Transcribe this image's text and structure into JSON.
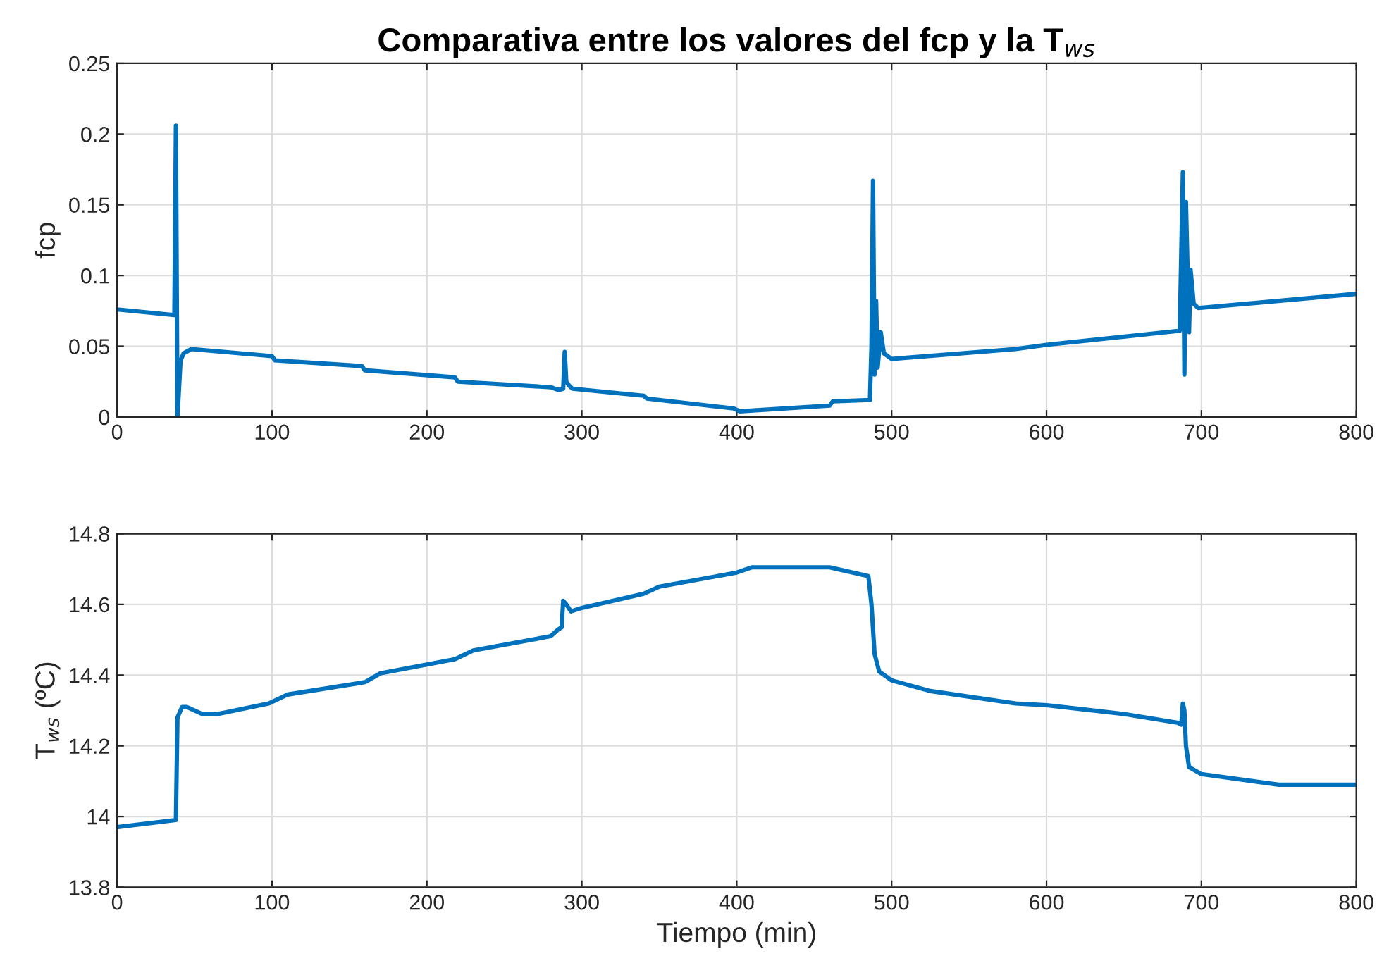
{
  "chart_data": [
    {
      "type": "line",
      "title": "Comparativa entre los valores del fcp y la T$_{ws}$",
      "ylabel": "fcp",
      "xlim": [
        0,
        800
      ],
      "xticks": [
        0,
        100,
        200,
        300,
        400,
        500,
        600,
        700,
        800
      ],
      "ylim": [
        0,
        0.25
      ],
      "yticks": [
        0,
        0.05,
        0.1,
        0.15,
        0.2,
        0.25
      ],
      "grid": true,
      "series": [
        {
          "color": "#0072bd",
          "x": [
            0,
            37,
            38,
            39,
            40,
            41,
            43,
            48,
            100,
            102,
            158,
            160,
            218,
            220,
            280,
            285,
            288,
            289,
            290,
            292,
            294,
            340,
            342,
            398,
            402,
            460,
            462,
            486,
            487,
            488,
            489,
            490,
            491,
            493,
            495,
            500,
            580,
            600,
            686,
            688,
            689,
            690,
            692,
            693,
            695,
            698,
            800
          ],
          "values": [
            0.076,
            0.072,
            0.206,
            0.0,
            0.02,
            0.04,
            0.045,
            0.048,
            0.043,
            0.04,
            0.036,
            0.033,
            0.028,
            0.025,
            0.021,
            0.019,
            0.02,
            0.046,
            0.025,
            0.022,
            0.02,
            0.015,
            0.013,
            0.006,
            0.004,
            0.008,
            0.011,
            0.012,
            0.05,
            0.167,
            0.03,
            0.082,
            0.035,
            0.06,
            0.045,
            0.041,
            0.048,
            0.051,
            0.061,
            0.173,
            0.03,
            0.152,
            0.06,
            0.104,
            0.08,
            0.077,
            0.087
          ]
        }
      ]
    },
    {
      "type": "line",
      "xlabel": "Tiempo (min)",
      "ylabel": "T$_{ws}$ (ºC)",
      "xlim": [
        0,
        800
      ],
      "xticks": [
        0,
        100,
        200,
        300,
        400,
        500,
        600,
        700,
        800
      ],
      "ylim": [
        13.8,
        14.8
      ],
      "yticks": [
        13.8,
        14,
        14.2,
        14.4,
        14.6,
        14.8
      ],
      "grid": true,
      "series": [
        {
          "color": "#0072bd",
          "x": [
            0,
            38,
            39,
            42,
            45,
            55,
            65,
            98,
            110,
            160,
            170,
            218,
            230,
            280,
            285,
            287,
            288,
            290,
            293,
            300,
            340,
            350,
            400,
            410,
            460,
            485,
            487,
            489,
            492,
            500,
            525,
            580,
            600,
            650,
            685,
            687,
            688,
            689,
            690,
            692,
            700,
            750,
            800
          ],
          "values": [
            13.97,
            13.99,
            14.28,
            14.31,
            14.31,
            14.29,
            14.29,
            14.32,
            14.345,
            14.38,
            14.405,
            14.445,
            14.47,
            14.51,
            14.53,
            14.535,
            14.61,
            14.6,
            14.58,
            14.59,
            14.63,
            14.65,
            14.69,
            14.705,
            14.705,
            14.68,
            14.6,
            14.46,
            14.41,
            14.385,
            14.355,
            14.32,
            14.315,
            14.29,
            14.265,
            14.26,
            14.32,
            14.3,
            14.2,
            14.14,
            14.12,
            14.09,
            14.09
          ]
        }
      ]
    }
  ]
}
